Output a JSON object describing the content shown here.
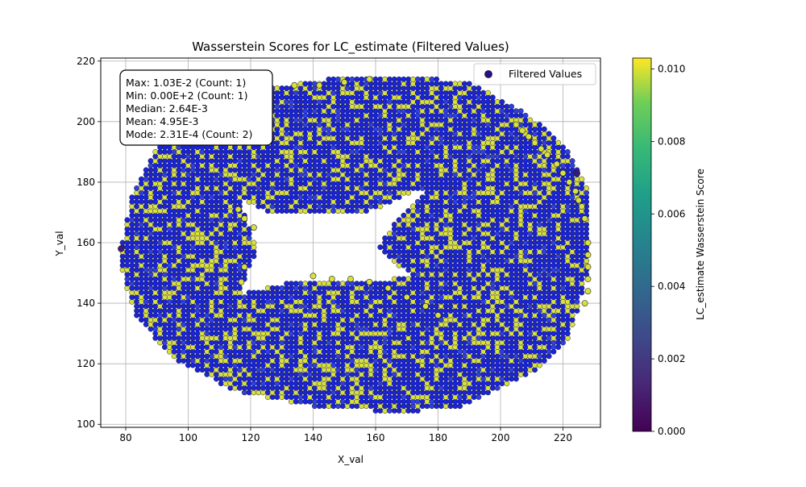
{
  "chart_data": {
    "type": "scatter",
    "title": "Wasserstein Scores for LC_estimate (Filtered Values)",
    "xlabel": "X_val",
    "ylabel": "Y_val",
    "xlim": [
      72,
      232
    ],
    "ylim": [
      99,
      221
    ],
    "xticks": [
      80,
      100,
      120,
      140,
      160,
      180,
      200,
      220
    ],
    "yticks": [
      100,
      120,
      140,
      160,
      180,
      200,
      220
    ],
    "grid": true,
    "legend": {
      "placement": "upper-right",
      "entries": [
        "Filtered Values"
      ]
    },
    "colorbar": {
      "label": "LC_estimate Wasserstein Score",
      "range": [
        0.0,
        0.0103
      ],
      "ticks": [
        "0.000",
        "0.002",
        "0.004",
        "0.006",
        "0.008",
        "0.010"
      ],
      "tick_values": [
        0.0,
        0.002,
        0.004,
        0.006,
        0.008,
        0.01
      ],
      "colormap": "viridis"
    },
    "stats_box": [
      "Max: 1.03E-2 (Count: 1)",
      "Min: 0.00E+2 (Count: 1)",
      "Median: 2.64E-3",
      "Mean: 4.95E-3",
      "Mode: 2.31E-4 (Count: 2)"
    ],
    "region": {
      "description_shape": "ring-like band",
      "outer_points": [
        [
          79,
          160
        ],
        [
          82,
          176
        ],
        [
          90,
          192
        ],
        [
          103,
          203
        ],
        [
          120,
          210
        ],
        [
          145,
          214
        ],
        [
          170,
          215
        ],
        [
          190,
          213
        ],
        [
          208,
          203
        ],
        [
          220,
          193
        ],
        [
          228,
          178
        ],
        [
          228,
          150
        ],
        [
          222,
          128
        ],
        [
          212,
          118
        ],
        [
          200,
          112
        ],
        [
          185,
          105
        ],
        [
          165,
          104
        ],
        [
          140,
          106
        ],
        [
          115,
          111
        ],
        [
          95,
          122
        ],
        [
          83,
          136
        ],
        [
          79,
          150
        ]
      ],
      "inner_points": [
        [
          117,
          175
        ],
        [
          125,
          170
        ],
        [
          150,
          169
        ],
        [
          160,
          171
        ],
        [
          170,
          176
        ],
        [
          177,
          178
        ],
        [
          172,
          172
        ],
        [
          165,
          165
        ],
        [
          161,
          158
        ],
        [
          167,
          152
        ],
        [
          174,
          150
        ],
        [
          166,
          148
        ],
        [
          155,
          147
        ],
        [
          140,
          148
        ],
        [
          128,
          146
        ],
        [
          117,
          143
        ],
        [
          119,
          150
        ],
        [
          122,
          158
        ],
        [
          119,
          166
        ]
      ],
      "marker_color": "#1a24d8",
      "edge_color": "#202020",
      "highlight_color": "#d8e040",
      "highlight_points": [
        [
          116,
          171
        ],
        [
          118,
          168
        ],
        [
          121,
          165
        ],
        [
          118,
          152
        ],
        [
          117,
          147
        ],
        [
          205,
          199
        ],
        [
          207,
          197
        ],
        [
          209,
          195
        ],
        [
          211,
          193
        ],
        [
          213,
          191
        ],
        [
          215,
          189
        ],
        [
          218,
          186
        ],
        [
          220,
          183
        ],
        [
          222,
          180
        ],
        [
          224,
          177
        ],
        [
          225,
          174
        ],
        [
          226,
          172
        ],
        [
          227,
          168
        ],
        [
          228,
          160
        ],
        [
          228,
          156
        ],
        [
          228,
          152
        ],
        [
          228,
          148
        ],
        [
          228,
          144
        ],
        [
          227,
          140
        ],
        [
          140,
          149
        ],
        [
          146,
          148
        ],
        [
          152,
          148
        ],
        [
          158,
          147
        ],
        [
          164,
          145
        ],
        [
          170,
          142
        ],
        [
          176,
          139
        ],
        [
          180,
          136
        ],
        [
          110,
          212
        ],
        [
          118,
          213
        ],
        [
          126,
          213
        ],
        [
          134,
          212
        ],
        [
          142,
          212
        ],
        [
          150,
          213
        ],
        [
          158,
          214
        ]
      ],
      "outlier_points": [
        [
          78.5,
          158
        ],
        [
          224.5,
          183
        ]
      ]
    }
  }
}
